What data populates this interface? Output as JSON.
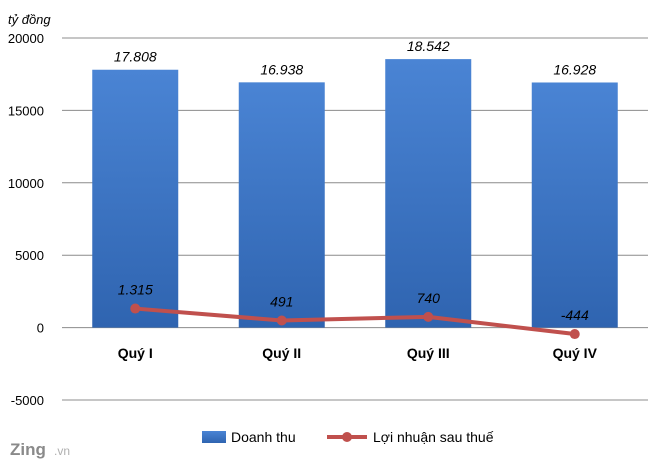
{
  "chart_data": {
    "type": "bar",
    "unit_label": "tỷ đồng",
    "categories": [
      "Quý I",
      "Quý II",
      "Quý III",
      "Quý IV"
    ],
    "ylim": [
      -5000,
      20000
    ],
    "yticks": [
      -5000,
      0,
      5000,
      10000,
      15000,
      20000
    ],
    "grid": true,
    "legend_position": "bottom",
    "series": [
      {
        "name": "Doanh thu",
        "type": "bar",
        "values": [
          17808,
          16938,
          18542,
          16928
        ],
        "labels": [
          "17.808",
          "16.938",
          "18.542",
          "16.928"
        ],
        "color": "#3a74c6"
      },
      {
        "name": "Lợi nhuận sau thuế",
        "type": "line",
        "values": [
          1315,
          491,
          740,
          -444
        ],
        "labels": [
          "1.315",
          "491",
          "740",
          "-444"
        ],
        "color": "#c0504d"
      }
    ]
  },
  "watermark": {
    "brand": "Zing",
    "suffix": ".vn"
  }
}
